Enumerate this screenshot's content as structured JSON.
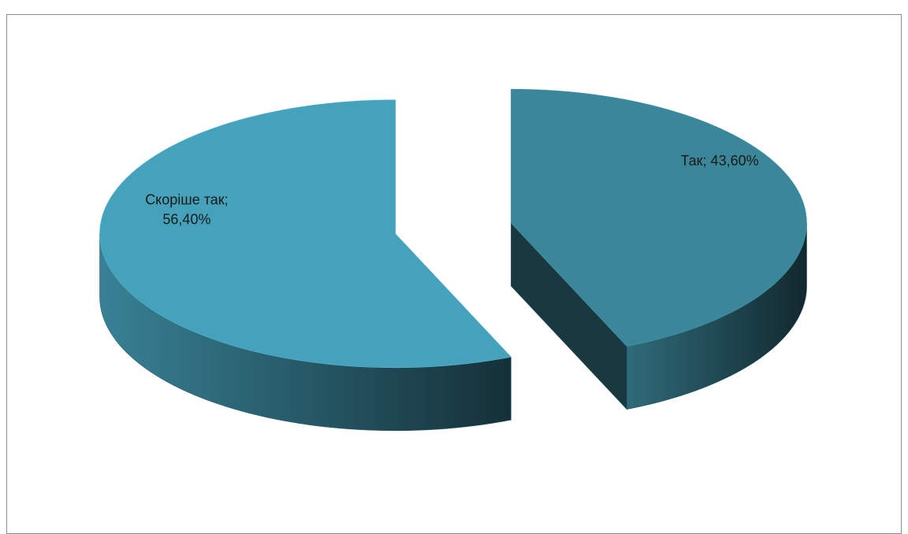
{
  "chart_data": {
    "type": "pie3d",
    "values": [
      43.6,
      56.4
    ],
    "value_labels": [
      "Так; 43,60%",
      "Скоріше так; 56,40%"
    ],
    "colors": [
      "#3b8699",
      "#46a1ba"
    ]
  }
}
